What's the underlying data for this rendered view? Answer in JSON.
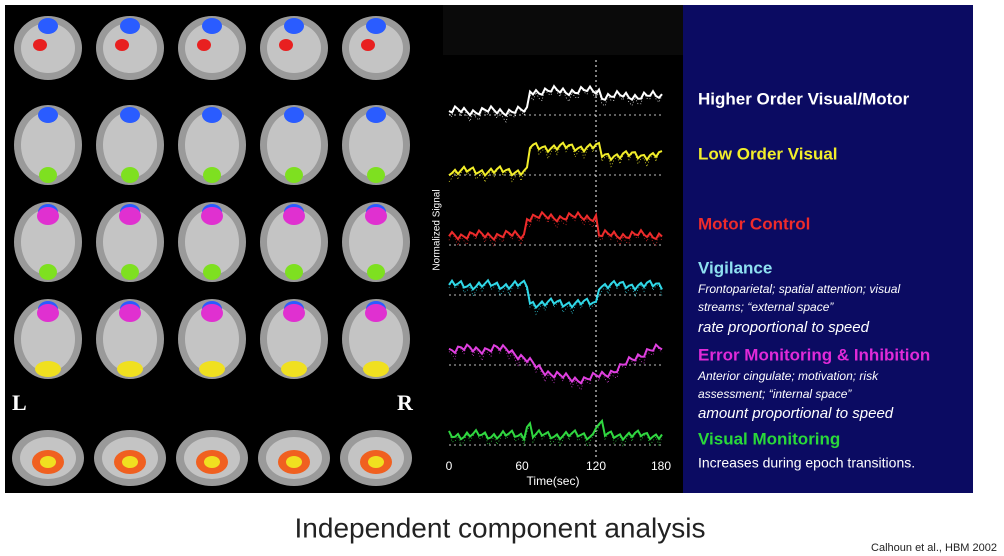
{
  "figure": {
    "brain_panel": {
      "left_label": "L",
      "right_label": "R"
    },
    "plot": {
      "y_label": "Normalized Signal",
      "x_label": "Time(sec)",
      "x_ticks": [
        "0",
        "60",
        "120",
        "180"
      ]
    },
    "components": [
      {
        "name": "Higher Order Visual/Motor",
        "description": []
      },
      {
        "name": "Low Order Visual",
        "description": []
      },
      {
        "name": "Motor Control",
        "description": []
      },
      {
        "name": "Vigilance",
        "description": [
          "Frontoparietal; spatial attention; visual",
          "streams; “external space”",
          "rate proportional to speed"
        ]
      },
      {
        "name": "Error Monitoring & Inhibition",
        "description": [
          "Anterior cingulate; motivation; risk",
          "assessment; “internal space”",
          "amount proportional to speed"
        ]
      },
      {
        "name": "Visual Monitoring",
        "description": [
          "Increases during epoch transitions."
        ]
      }
    ]
  },
  "caption": "Independent component analysis",
  "citation": "Calhoun et al., HBM 2002"
}
